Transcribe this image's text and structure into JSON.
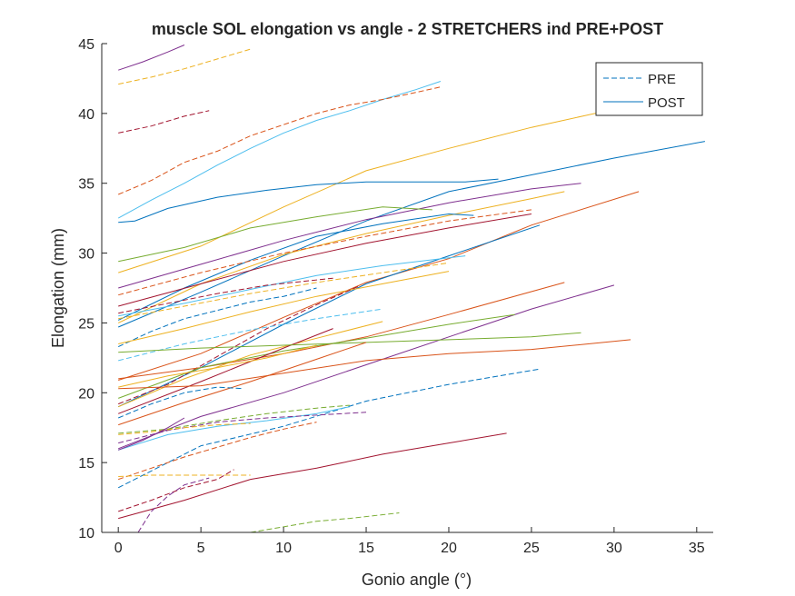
{
  "chart_data": {
    "type": "line",
    "title": "muscle SOL elongation vs angle - 2 STRETCHERS ind PRE+POST",
    "xlabel": "Gonio angle (°)",
    "ylabel": "Elongation (mm)",
    "xlim": [
      -1,
      36
    ],
    "ylim": [
      10,
      45
    ],
    "xticks": [
      0,
      5,
      10,
      15,
      20,
      25,
      30,
      35
    ],
    "yticks": [
      10,
      15,
      20,
      25,
      30,
      35,
      40,
      45
    ],
    "grid": false,
    "legend": {
      "placement": "top-right",
      "entries": [
        {
          "label": "PRE",
          "style": "dashed",
          "color": "#0072BD"
        },
        {
          "label": "POST",
          "style": "solid",
          "color": "#0072BD"
        }
      ]
    },
    "series": [
      {
        "style": "solid",
        "color": "#7E2F8E",
        "x": [
          0,
          1.5,
          3,
          4
        ],
        "y": [
          43.1,
          43.7,
          44.4,
          44.9
        ]
      },
      {
        "style": "dashed",
        "color": "#EDB120",
        "x": [
          0,
          2,
          4,
          6,
          8
        ],
        "y": [
          42.1,
          42.6,
          43.2,
          43.9,
          44.6
        ]
      },
      {
        "style": "dashed",
        "color": "#A2142F",
        "x": [
          0,
          2,
          4,
          5.5
        ],
        "y": [
          38.6,
          39.1,
          39.8,
          40.2
        ]
      },
      {
        "style": "solid",
        "color": "#4DBEEE",
        "x": [
          0,
          2,
          4,
          6,
          8,
          10,
          12,
          14,
          16,
          18,
          19.5
        ],
        "y": [
          32.5,
          33.8,
          35.0,
          36.3,
          37.5,
          38.6,
          39.5,
          40.2,
          41.0,
          41.7,
          42.3
        ]
      },
      {
        "style": "dashed",
        "color": "#D95319",
        "x": [
          0,
          2,
          4,
          6,
          8,
          10,
          12,
          14,
          16,
          18,
          19.5
        ],
        "y": [
          34.2,
          35.2,
          36.5,
          37.3,
          38.4,
          39.2,
          40.0,
          40.6,
          41.0,
          41.5,
          41.9
        ]
      },
      {
        "style": "solid",
        "color": "#EDB120",
        "x": [
          0,
          5,
          10,
          15,
          20,
          25,
          30,
          32
        ],
        "y": [
          28.6,
          30.5,
          33.3,
          35.9,
          37.5,
          39.0,
          40.3,
          40.5
        ]
      },
      {
        "style": "solid",
        "color": "#0072BD",
        "x": [
          0,
          1,
          3,
          6,
          9,
          12,
          15,
          18,
          21,
          23
        ],
        "y": [
          32.2,
          32.3,
          33.2,
          34.0,
          34.5,
          34.9,
          35.1,
          35.1,
          35.1,
          35.3
        ]
      },
      {
        "style": "solid",
        "color": "#0072BD",
        "x": [
          0,
          5,
          10,
          15,
          20,
          25,
          30,
          35.5
        ],
        "y": [
          24.7,
          27.2,
          29.8,
          32.3,
          34.4,
          35.6,
          36.8,
          38.0
        ]
      },
      {
        "style": "solid",
        "color": "#7E2F8E",
        "x": [
          0,
          5,
          10,
          15,
          20,
          25,
          28
        ],
        "y": [
          27.5,
          29.2,
          30.9,
          32.4,
          33.6,
          34.6,
          35.0
        ]
      },
      {
        "style": "solid",
        "color": "#EDB120",
        "x": [
          0,
          5,
          10,
          15,
          20,
          25,
          27
        ],
        "y": [
          25.0,
          27.8,
          29.9,
          31.4,
          32.7,
          33.9,
          34.4
        ]
      },
      {
        "style": "solid",
        "color": "#77AC30",
        "x": [
          0,
          4,
          8,
          12,
          16,
          19
        ],
        "y": [
          29.4,
          30.4,
          31.8,
          32.6,
          33.3,
          33.1
        ]
      },
      {
        "style": "solid",
        "color": "#0072BD",
        "x": [
          0,
          4,
          8,
          12,
          16,
          20,
          21.5
        ],
        "y": [
          25.2,
          27.5,
          29.5,
          31.2,
          32.1,
          32.8,
          32.7
        ]
      },
      {
        "style": "solid",
        "color": "#D95319",
        "x": [
          0,
          5,
          10,
          15,
          20,
          25,
          31.5
        ],
        "y": [
          20.9,
          22.8,
          25.4,
          27.9,
          29.6,
          32.0,
          34.4
        ]
      },
      {
        "style": "solid",
        "color": "#A2142F",
        "x": [
          0,
          5,
          10,
          15,
          20,
          25
        ],
        "y": [
          26.2,
          27.8,
          29.4,
          30.7,
          31.8,
          32.8
        ]
      },
      {
        "style": "dashed",
        "color": "#D95319",
        "x": [
          0,
          5,
          10,
          15,
          20,
          25
        ],
        "y": [
          27.0,
          28.6,
          30.0,
          31.2,
          32.3,
          33.1
        ]
      },
      {
        "style": "solid",
        "color": "#0072BD",
        "x": [
          0,
          5,
          10,
          15,
          20,
          25.5
        ],
        "y": [
          19.0,
          21.8,
          24.9,
          27.8,
          29.8,
          32.0
        ]
      },
      {
        "style": "solid",
        "color": "#4DBEEE",
        "x": [
          0,
          4,
          8,
          12,
          16,
          21
        ],
        "y": [
          25.5,
          26.4,
          27.4,
          28.4,
          29.1,
          29.8
        ]
      },
      {
        "style": "dashed",
        "color": "#EDB120",
        "x": [
          0,
          4,
          8,
          12,
          16,
          20
        ],
        "y": [
          25.3,
          26.2,
          27.1,
          27.9,
          28.6,
          29.3
        ]
      },
      {
        "style": "dashed",
        "color": "#A2142F",
        "x": [
          0,
          3,
          6,
          9,
          13
        ],
        "y": [
          25.7,
          26.4,
          27.1,
          27.7,
          28.2
        ]
      },
      {
        "style": "dashed",
        "color": "#0072BD",
        "x": [
          0,
          2,
          4,
          6,
          8,
          10,
          12
        ],
        "y": [
          23.3,
          24.4,
          25.3,
          25.9,
          26.5,
          26.9,
          27.5
        ]
      },
      {
        "style": "solid",
        "color": "#EDB120",
        "x": [
          0,
          4,
          8,
          12,
          16,
          20
        ],
        "y": [
          23.5,
          24.6,
          25.8,
          26.9,
          27.8,
          28.7
        ]
      },
      {
        "style": "dashed",
        "color": "#A2142F",
        "x": [
          0,
          3,
          6,
          9,
          12,
          14.5
        ],
        "y": [
          19.2,
          20.6,
          22.6,
          24.6,
          26.3,
          27.6
        ]
      },
      {
        "style": "dashed",
        "color": "#4DBEEE",
        "x": [
          0,
          4,
          8,
          12,
          16
        ],
        "y": [
          22.3,
          23.5,
          24.5,
          25.3,
          26.0
        ]
      },
      {
        "style": "solid",
        "color": "#D95319",
        "x": [
          0,
          5,
          10,
          15,
          20,
          27
        ],
        "y": [
          21.0,
          21.8,
          22.8,
          24.0,
          25.6,
          27.9
        ]
      },
      {
        "style": "solid",
        "color": "#7E2F8E",
        "x": [
          0,
          5,
          10,
          15,
          20,
          25,
          30
        ],
        "y": [
          16.0,
          18.3,
          20.0,
          22.0,
          24.0,
          26.0,
          27.7
        ]
      },
      {
        "style": "solid",
        "color": "#77AC30",
        "x": [
          0,
          5,
          10,
          15,
          20,
          24
        ],
        "y": [
          19.6,
          21.8,
          23.0,
          23.9,
          24.9,
          25.6
        ]
      },
      {
        "style": "solid",
        "color": "#EDB120",
        "x": [
          0,
          4,
          8,
          12,
          16
        ],
        "y": [
          19.0,
          21.0,
          22.7,
          23.9,
          25.1
        ]
      },
      {
        "style": "solid",
        "color": "#A2142F",
        "x": [
          0,
          5,
          10,
          13
        ],
        "y": [
          18.5,
          20.8,
          23.2,
          24.6
        ]
      },
      {
        "style": "solid",
        "color": "#77AC30",
        "x": [
          0,
          5,
          10,
          15,
          20,
          25,
          28
        ],
        "y": [
          22.9,
          23.2,
          23.4,
          23.6,
          23.8,
          24.0,
          24.3
        ]
      },
      {
        "style": "solid",
        "color": "#D95319",
        "x": [
          0,
          5,
          10,
          15,
          20,
          25,
          31
        ],
        "y": [
          20.3,
          20.5,
          21.4,
          22.3,
          22.8,
          23.1,
          23.8
        ]
      },
      {
        "style": "solid",
        "color": "#EDB120",
        "x": [
          0,
          3,
          6,
          9,
          12
        ],
        "y": [
          20.4,
          21.2,
          21.8,
          22.5,
          23.4
        ]
      },
      {
        "style": "solid",
        "color": "#D95319",
        "x": [
          0,
          4,
          8,
          12,
          15
        ],
        "y": [
          17.7,
          19.3,
          20.8,
          22.4,
          23.6
        ]
      },
      {
        "style": "dashed",
        "color": "#0072BD",
        "x": [
          0,
          2,
          4,
          6,
          7.5
        ],
        "y": [
          18.2,
          19.2,
          20.0,
          20.4,
          20.3
        ]
      },
      {
        "style": "dashed",
        "color": "#0072BD",
        "x": [
          0,
          5,
          10,
          15,
          20,
          25.5
        ],
        "y": [
          13.2,
          16.2,
          17.6,
          19.4,
          20.6,
          21.7
        ]
      },
      {
        "style": "dashed",
        "color": "#77AC30",
        "x": [
          0,
          3,
          6,
          9,
          12,
          14
        ],
        "y": [
          17.1,
          17.4,
          18.0,
          18.5,
          18.9,
          19.1
        ]
      },
      {
        "style": "solid",
        "color": "#4DBEEE",
        "x": [
          0,
          3,
          6,
          9,
          12,
          14
        ],
        "y": [
          15.9,
          17.0,
          17.6,
          18.0,
          18.5,
          19.0
        ]
      },
      {
        "style": "dashed",
        "color": "#7E2F8E",
        "x": [
          0,
          3,
          6,
          9,
          12,
          15
        ],
        "y": [
          16.4,
          17.3,
          17.9,
          18.2,
          18.4,
          18.6
        ]
      },
      {
        "style": "dashed",
        "color": "#EDB120",
        "x": [
          0,
          2,
          4,
          6,
          8
        ],
        "y": [
          17.0,
          17.2,
          17.5,
          17.7,
          17.8
        ]
      },
      {
        "style": "dashed",
        "color": "#D95319",
        "x": [
          0,
          2,
          4,
          6,
          8,
          10,
          12
        ],
        "y": [
          13.8,
          14.6,
          15.4,
          16.1,
          16.8,
          17.4,
          17.9
        ]
      },
      {
        "style": "solid",
        "color": "#7E2F8E",
        "x": [
          0,
          1.5,
          3,
          4
        ],
        "y": [
          15.9,
          16.6,
          17.5,
          18.2
        ]
      },
      {
        "style": "solid",
        "color": "#A2142F",
        "x": [
          0,
          4,
          8,
          12,
          16,
          20,
          23.5
        ],
        "y": [
          11.0,
          12.3,
          13.8,
          14.6,
          15.6,
          16.4,
          17.1
        ]
      },
      {
        "style": "dashed",
        "color": "#EDB120",
        "x": [
          0,
          2,
          4,
          6,
          8
        ],
        "y": [
          14.0,
          14.1,
          14.1,
          14.1,
          14.1
        ]
      },
      {
        "style": "dashed",
        "color": "#A2142F",
        "x": [
          0,
          2,
          4,
          6,
          7
        ],
        "y": [
          11.5,
          12.3,
          13.2,
          13.8,
          14.5
        ]
      },
      {
        "style": "dashed",
        "color": "#7E2F8E",
        "x": [
          1.2,
          2,
          3,
          4,
          5.5
        ],
        "y": [
          10.0,
          11.5,
          12.6,
          13.4,
          13.9
        ]
      },
      {
        "style": "dashed",
        "color": "#77AC30",
        "x": [
          8,
          10,
          12,
          14,
          17
        ],
        "y": [
          10.0,
          10.4,
          10.8,
          11.0,
          11.4
        ]
      }
    ]
  }
}
